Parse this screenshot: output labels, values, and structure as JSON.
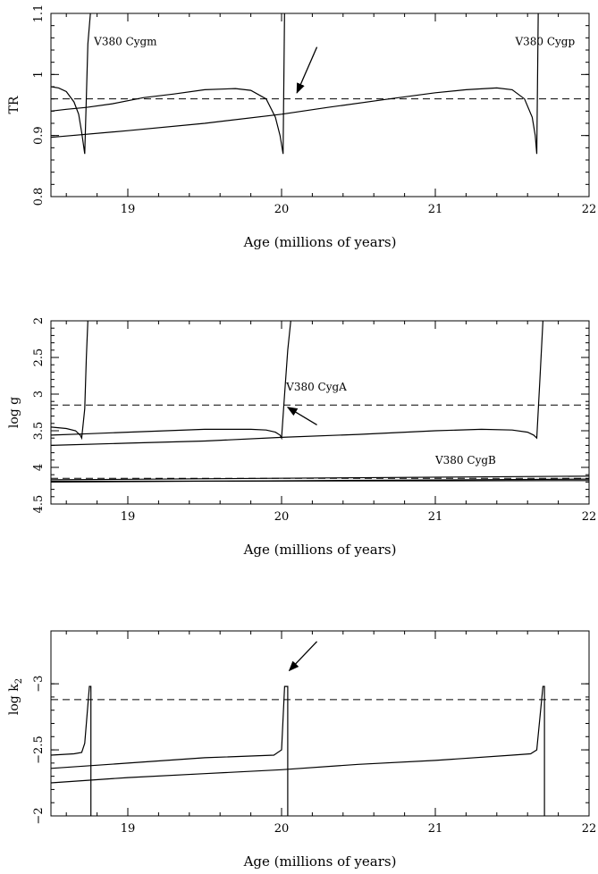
{
  "chart_data": [
    {
      "id": "tr",
      "type": "line",
      "ylabel": "TR",
      "xlabel": "Age (millions of years)",
      "xlim": [
        18.5,
        22
      ],
      "ylim": [
        0.8,
        1.1
      ],
      "y_inverted": false,
      "xticks": [
        19,
        20,
        21,
        22
      ],
      "yticks": [
        0.8,
        0.9,
        1,
        1.1
      ],
      "ytick_labels": [
        "0.8",
        "0.9",
        "1",
        "1.1"
      ],
      "annotations": [
        {
          "text": "V380 Cygm",
          "x": 18.78,
          "y": 1.048
        },
        {
          "text": "V380 Cygp",
          "x": 21.52,
          "y": 1.048
        }
      ],
      "observed_value": 0.96,
      "arrow": {
        "from": [
          20.23,
          1.045
        ],
        "to": [
          20.1,
          0.97
        ]
      },
      "series": [
        {
          "x": [
            18.5,
            18.55,
            18.6,
            18.65,
            18.68,
            18.7,
            18.72,
            18.74,
            18.76
          ],
          "y": [
            0.98,
            0.978,
            0.972,
            0.955,
            0.935,
            0.905,
            0.87,
            1.05,
            1.11
          ]
        },
        {
          "x": [
            18.5,
            18.6,
            18.73,
            18.9,
            19.1,
            19.3,
            19.5,
            19.7,
            19.8,
            19.9,
            19.96,
            19.99,
            20.01,
            20.02
          ],
          "y": [
            0.94,
            0.943,
            0.946,
            0.952,
            0.962,
            0.968,
            0.975,
            0.977,
            0.974,
            0.96,
            0.93,
            0.9,
            0.87,
            1.11
          ]
        },
        {
          "x": [
            18.5,
            19.0,
            19.5,
            20.0,
            20.3,
            20.7,
            21.0,
            21.2,
            21.4,
            21.5,
            21.58,
            21.63,
            21.65,
            21.66,
            21.67
          ],
          "y": [
            0.897,
            0.908,
            0.92,
            0.935,
            0.946,
            0.96,
            0.97,
            0.975,
            0.978,
            0.975,
            0.96,
            0.93,
            0.9,
            0.87,
            1.11
          ]
        }
      ]
    },
    {
      "id": "logg",
      "type": "line",
      "ylabel": "log g",
      "xlabel": "Age (millions of years)",
      "xlim": [
        18.5,
        22
      ],
      "ylim": [
        2,
        4.5
      ],
      "y_inverted": true,
      "xticks": [
        19,
        20,
        21,
        22
      ],
      "yticks": [
        2,
        2.5,
        3,
        3.5,
        4,
        4.5
      ],
      "ytick_labels": [
        "2",
        "2.5",
        "3",
        "3.5",
        "4",
        "4.5"
      ],
      "annotations": [
        {
          "text": "V380 CygA",
          "x": 20.03,
          "y": 2.95
        },
        {
          "text": "V380 CygB",
          "x": 21.0,
          "y": 3.95
        }
      ],
      "observed_value": 3.15,
      "observed_value_2": 4.15,
      "arrow": {
        "from": [
          20.23,
          3.42
        ],
        "to": [
          20.04,
          3.18
        ]
      },
      "series": [
        {
          "x": [
            18.5,
            18.6,
            18.66,
            18.69,
            18.7,
            18.72,
            18.73,
            18.74
          ],
          "y": [
            3.45,
            3.47,
            3.5,
            3.56,
            3.6,
            3.2,
            2.5,
            2.0
          ]
        },
        {
          "x": [
            18.5,
            18.75,
            19.0,
            19.5,
            19.8,
            19.9,
            19.96,
            19.99,
            20.0,
            20.02,
            20.04,
            20.06
          ],
          "y": [
            3.56,
            3.54,
            3.52,
            3.48,
            3.48,
            3.49,
            3.52,
            3.56,
            3.6,
            3.0,
            2.4,
            2.0
          ]
        },
        {
          "x": [
            18.5,
            19.0,
            19.5,
            20.0,
            20.5,
            21.0,
            21.3,
            21.5,
            21.6,
            21.64,
            21.66,
            21.68,
            21.7
          ],
          "y": [
            3.7,
            3.67,
            3.64,
            3.59,
            3.55,
            3.5,
            3.48,
            3.49,
            3.52,
            3.56,
            3.6,
            2.8,
            2.0
          ]
        },
        {
          "x": [
            18.5,
            22.0
          ],
          "y": [
            4.17,
            4.12
          ]
        },
        {
          "x": [
            18.5,
            22.0
          ],
          "y": [
            4.2,
            4.16
          ]
        },
        {
          "x": [
            18.5,
            22.0
          ],
          "y": [
            4.19,
            4.18
          ]
        }
      ]
    },
    {
      "id": "logk2",
      "type": "line",
      "ylabel": "log k2",
      "xlabel": "Age (millions of years)",
      "xlim": [
        18.5,
        22
      ],
      "ylim": [
        -2,
        -3.4
      ],
      "y_inverted": false,
      "xticks": [
        19,
        20,
        21,
        22
      ],
      "yticks": [
        -3,
        -2.5,
        -2
      ],
      "ytick_labels": [
        "−3",
        "−2.5",
        "−2"
      ],
      "annotations": [],
      "observed_value": -2.88,
      "arrow": {
        "from": [
          20.23,
          -3.32
        ],
        "to": [
          20.05,
          -3.1
        ]
      },
      "series": [
        {
          "x": [
            18.5,
            18.65,
            18.7,
            18.72,
            18.75,
            18.76,
            18.76
          ],
          "y": [
            -2.46,
            -2.47,
            -2.48,
            -2.55,
            -2.98,
            -2.98,
            -2.0
          ]
        },
        {
          "x": [
            18.5,
            19.0,
            19.5,
            19.95,
            20.0,
            20.02,
            20.04,
            20.04
          ],
          "y": [
            -2.36,
            -2.4,
            -2.44,
            -2.46,
            -2.5,
            -2.98,
            -2.98,
            -2.0
          ]
        },
        {
          "x": [
            18.5,
            19.0,
            19.5,
            20.0,
            20.5,
            21.0,
            21.5,
            21.62,
            21.66,
            21.7,
            21.71,
            21.71
          ],
          "y": [
            -2.25,
            -2.29,
            -2.32,
            -2.35,
            -2.39,
            -2.42,
            -2.46,
            -2.47,
            -2.5,
            -2.98,
            -2.98,
            -2.0
          ]
        }
      ]
    }
  ]
}
